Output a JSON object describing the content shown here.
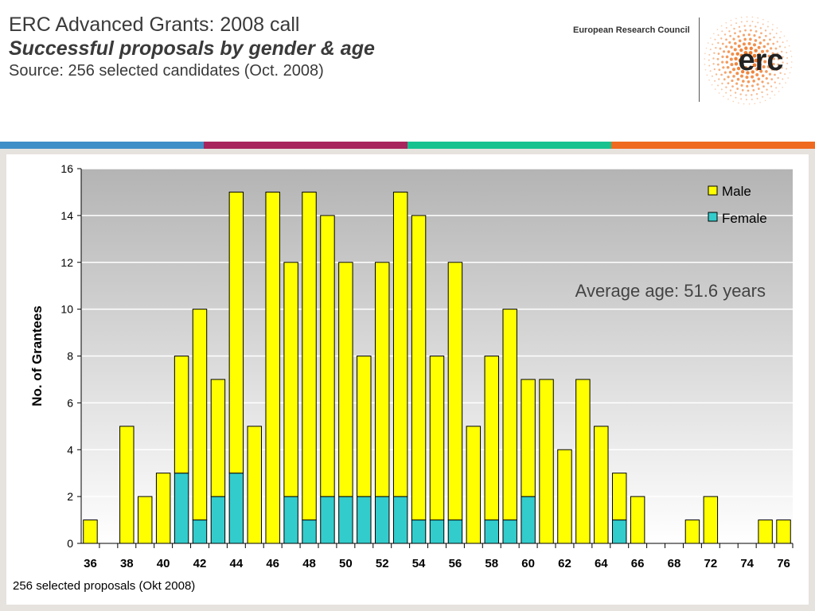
{
  "header": {
    "title_line1": "ERC Advanced Grants: 2008 call",
    "title_line2": "Successful proposals by gender & age",
    "title_line3": "Source: 256 selected candidates (Oct. 2008)",
    "org_name": "European Research Council",
    "logo_text": "erc"
  },
  "colors": {
    "bar1": "#3e8ec8",
    "bar2": "#a8245c",
    "bar3": "#17c28f",
    "bar4": "#ef6a1e",
    "male": "#ffff00",
    "female": "#33cccc",
    "logo_orange": "#ef7a2a"
  },
  "footnote": "256 selected proposals (Okt 2008)",
  "chart_data": {
    "type": "bar",
    "stacked": true,
    "categories": [
      "36",
      "37",
      "38",
      "39",
      "40",
      "41",
      "42",
      "43",
      "44",
      "45",
      "46",
      "47",
      "48",
      "49",
      "50",
      "51",
      "52",
      "53",
      "54",
      "55",
      "56",
      "57",
      "58",
      "59",
      "60",
      "61",
      "62",
      "63",
      "64",
      "65",
      "66",
      "67",
      "68",
      "69",
      "72",
      "73",
      "74",
      "75",
      "76"
    ],
    "x_tick_labels": [
      "36",
      "",
      "38",
      "",
      "40",
      "",
      "42",
      "",
      "44",
      "",
      "46",
      "",
      "48",
      "",
      "50",
      "",
      "52",
      "",
      "54",
      "",
      "56",
      "",
      "58",
      "",
      "60",
      "",
      "62",
      "",
      "64",
      "",
      "66",
      "",
      "68",
      "",
      "72",
      "",
      "74",
      "",
      "76"
    ],
    "series": [
      {
        "name": "Female",
        "values": [
          0,
          0,
          0,
          0,
          0,
          3,
          1,
          2,
          3,
          0,
          0,
          2,
          1,
          2,
          2,
          2,
          2,
          2,
          1,
          1,
          1,
          0,
          1,
          1,
          2,
          0,
          0,
          0,
          0,
          1,
          0,
          0,
          0,
          0,
          0,
          0,
          0,
          0,
          0
        ]
      },
      {
        "name": "Male",
        "values": [
          1,
          0,
          5,
          2,
          3,
          5,
          9,
          5,
          12,
          5,
          15,
          10,
          14,
          12,
          10,
          6,
          10,
          13,
          13,
          7,
          11,
          5,
          7,
          9,
          5,
          7,
          4,
          7,
          5,
          2,
          2,
          0,
          0,
          1,
          2,
          0,
          0,
          1,
          1
        ]
      }
    ],
    "ylabel": "No. of Grantees",
    "ylim": [
      0,
      16
    ],
    "yticks": [
      0,
      2,
      4,
      6,
      8,
      10,
      12,
      14,
      16
    ],
    "grid": true,
    "legend": "top-right",
    "annotation": "Average age: 51.6 years"
  }
}
